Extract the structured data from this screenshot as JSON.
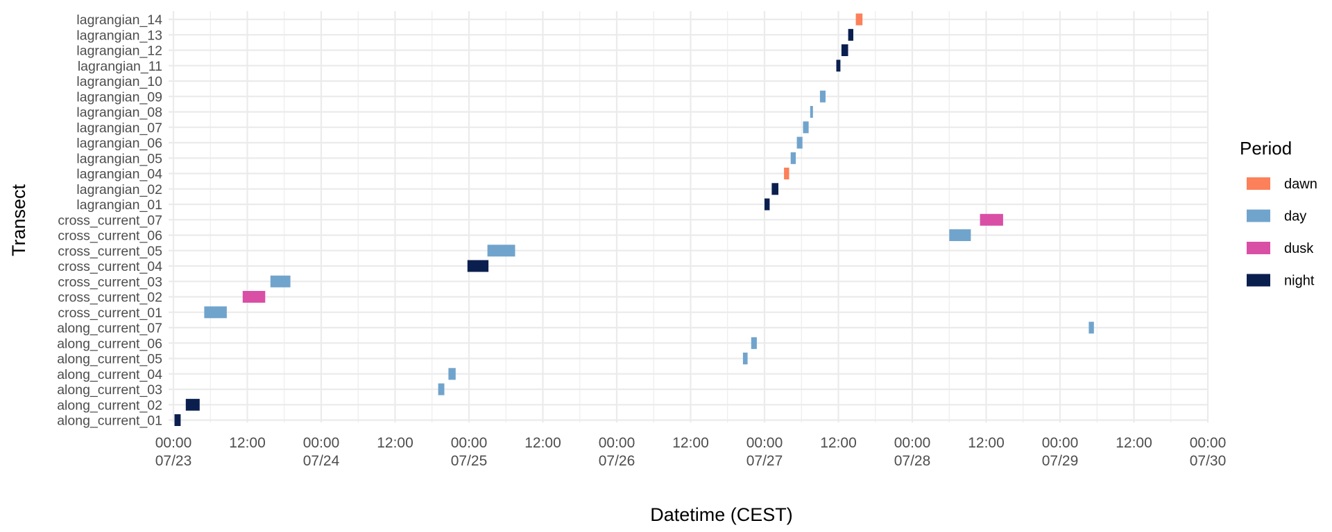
{
  "chart_data": {
    "type": "gantt",
    "xlabel": "Datetime (CEST)",
    "ylabel": "Transect",
    "x_ticks": [
      {
        "value": "2023-07-23T00:00",
        "time": "00:00",
        "date": "07/23"
      },
      {
        "value": "2023-07-23T12:00",
        "time": "12:00",
        "date": ""
      },
      {
        "value": "2023-07-24T00:00",
        "time": "00:00",
        "date": "07/24"
      },
      {
        "value": "2023-07-24T12:00",
        "time": "12:00",
        "date": ""
      },
      {
        "value": "2023-07-25T00:00",
        "time": "00:00",
        "date": "07/25"
      },
      {
        "value": "2023-07-25T12:00",
        "time": "12:00",
        "date": ""
      },
      {
        "value": "2023-07-26T00:00",
        "time": "00:00",
        "date": "07/26"
      },
      {
        "value": "2023-07-26T12:00",
        "time": "12:00",
        "date": ""
      },
      {
        "value": "2023-07-27T00:00",
        "time": "00:00",
        "date": "07/27"
      },
      {
        "value": "2023-07-27T12:00",
        "time": "12:00",
        "date": ""
      },
      {
        "value": "2023-07-28T00:00",
        "time": "00:00",
        "date": "07/28"
      },
      {
        "value": "2023-07-28T12:00",
        "time": "12:00",
        "date": ""
      },
      {
        "value": "2023-07-29T00:00",
        "time": "00:00",
        "date": "07/29"
      },
      {
        "value": "2023-07-29T12:00",
        "time": "12:00",
        "date": ""
      },
      {
        "value": "2023-07-30T00:00",
        "time": "00:00",
        "date": "07/30"
      }
    ],
    "xlim": [
      "2023-07-23T00:00",
      "2023-07-30T00:00"
    ],
    "grid": true,
    "legend": {
      "title": "Period",
      "position": "right",
      "entries": [
        {
          "name": "dawn",
          "color": "#FC8059"
        },
        {
          "name": "day",
          "color": "#71A4CC"
        },
        {
          "name": "dusk",
          "color": "#D94FA6"
        },
        {
          "name": "night",
          "color": "#0B1F4F"
        }
      ]
    },
    "categories": [
      "along_current_01",
      "along_current_02",
      "along_current_03",
      "along_current_04",
      "along_current_05",
      "along_current_06",
      "along_current_07",
      "cross_current_01",
      "cross_current_02",
      "cross_current_03",
      "cross_current_04",
      "cross_current_05",
      "cross_current_06",
      "cross_current_07",
      "lagrangian_01",
      "lagrangian_02",
      "lagrangian_04",
      "lagrangian_05",
      "lagrangian_06",
      "lagrangian_07",
      "lagrangian_08",
      "lagrangian_09",
      "lagrangian_10",
      "lagrangian_11",
      "lagrangian_12",
      "lagrangian_13",
      "lagrangian_14"
    ],
    "bars": [
      {
        "transect": "along_current_01",
        "start": "2023-07-23T00:10",
        "end": "2023-07-23T01:10",
        "period": "night"
      },
      {
        "transect": "along_current_02",
        "start": "2023-07-23T02:00",
        "end": "2023-07-23T04:15",
        "period": "night"
      },
      {
        "transect": "along_current_03",
        "start": "2023-07-24T19:00",
        "end": "2023-07-24T20:00",
        "period": "day"
      },
      {
        "transect": "along_current_04",
        "start": "2023-07-24T20:40",
        "end": "2023-07-24T21:50",
        "period": "day"
      },
      {
        "transect": "along_current_05",
        "start": "2023-07-26T20:30",
        "end": "2023-07-26T21:15",
        "period": "day"
      },
      {
        "transect": "along_current_06",
        "start": "2023-07-26T21:50",
        "end": "2023-07-26T22:45",
        "period": "day"
      },
      {
        "transect": "along_current_07",
        "start": "2023-07-29T04:40",
        "end": "2023-07-29T05:30",
        "period": "day"
      },
      {
        "transect": "cross_current_01",
        "start": "2023-07-23T05:00",
        "end": "2023-07-23T08:40",
        "period": "day"
      },
      {
        "transect": "cross_current_02",
        "start": "2023-07-23T11:15",
        "end": "2023-07-23T14:55",
        "period": "dusk"
      },
      {
        "transect": "cross_current_03",
        "start": "2023-07-23T15:45",
        "end": "2023-07-23T19:00",
        "period": "day"
      },
      {
        "transect": "cross_current_04",
        "start": "2023-07-24T23:45",
        "end": "2023-07-25T03:10",
        "period": "night"
      },
      {
        "transect": "cross_current_05",
        "start": "2023-07-25T03:00",
        "end": "2023-07-25T07:30",
        "period": "day"
      },
      {
        "transect": "cross_current_06",
        "start": "2023-07-28T06:00",
        "end": "2023-07-28T09:30",
        "period": "day"
      },
      {
        "transect": "cross_current_07",
        "start": "2023-07-28T11:00",
        "end": "2023-07-28T14:45",
        "period": "dusk"
      },
      {
        "transect": "lagrangian_01",
        "start": "2023-07-27T00:00",
        "end": "2023-07-27T00:50",
        "period": "night"
      },
      {
        "transect": "lagrangian_02",
        "start": "2023-07-27T01:10",
        "end": "2023-07-27T02:15",
        "period": "night"
      },
      {
        "transect": "lagrangian_04",
        "start": "2023-07-27T03:10",
        "end": "2023-07-27T04:00",
        "period": "dawn"
      },
      {
        "transect": "lagrangian_05",
        "start": "2023-07-27T04:15",
        "end": "2023-07-27T05:05",
        "period": "day"
      },
      {
        "transect": "lagrangian_06",
        "start": "2023-07-27T05:15",
        "end": "2023-07-27T06:10",
        "period": "day"
      },
      {
        "transect": "lagrangian_07",
        "start": "2023-07-27T06:15",
        "end": "2023-07-27T07:10",
        "period": "day"
      },
      {
        "transect": "lagrangian_08",
        "start": "2023-07-27T07:25",
        "end": "2023-07-27T07:45",
        "period": "day"
      },
      {
        "transect": "lagrangian_09",
        "start": "2023-07-27T09:00",
        "end": "2023-07-27T09:55",
        "period": "day"
      },
      {
        "transect": "lagrangian_11",
        "start": "2023-07-27T11:40",
        "end": "2023-07-27T12:20",
        "period": "night"
      },
      {
        "transect": "lagrangian_12",
        "start": "2023-07-27T12:30",
        "end": "2023-07-27T13:35",
        "period": "night"
      },
      {
        "transect": "lagrangian_13",
        "start": "2023-07-27T13:35",
        "end": "2023-07-27T14:25",
        "period": "night"
      },
      {
        "transect": "lagrangian_14",
        "start": "2023-07-27T14:50",
        "end": "2023-07-27T15:55",
        "period": "dawn"
      }
    ]
  }
}
